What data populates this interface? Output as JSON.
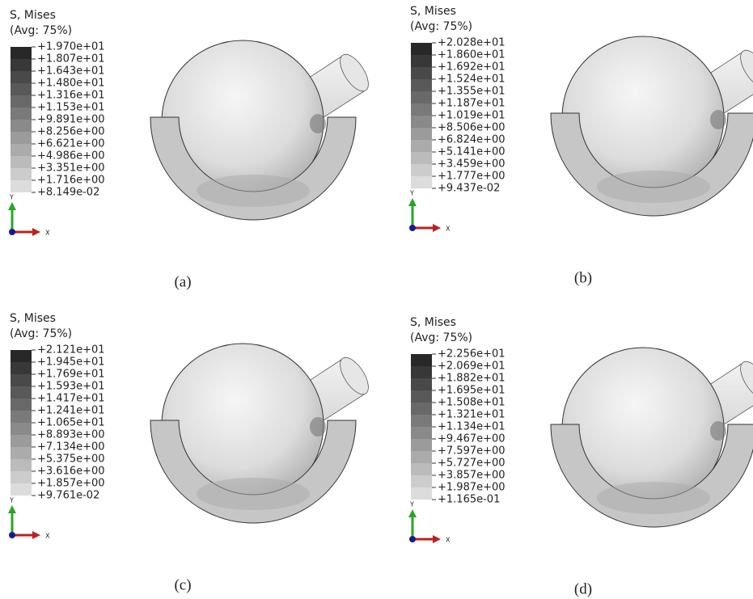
{
  "panels": [
    {
      "title": "S, Mises",
      "subtitle": "(Avg: 75%)",
      "legend": [
        "+1.970e+01",
        "+1.807e+01",
        "+1.643e+01",
        "+1.480e+01",
        "+1.316e+01",
        "+1.153e+01",
        "+9.891e+00",
        "+8.256e+00",
        "+6.621e+00",
        "+4.986e+00",
        "+3.351e+00",
        "+1.716e+00",
        "+8.149e-02"
      ],
      "axis_y": "Y",
      "axis_x": "X",
      "caption": "(a)"
    },
    {
      "title": "S, Mises",
      "subtitle": "(Avg: 75%)",
      "legend": [
        "+2.028e+01",
        "+1.860e+01",
        "+1.692e+01",
        "+1.524e+01",
        "+1.355e+01",
        "+1.187e+01",
        "+1.019e+01",
        "+8.506e+00",
        "+6.824e+00",
        "+5.141e+00",
        "+3.459e+00",
        "+1.777e+00",
        "+9.437e-02"
      ],
      "axis_y": "Y",
      "axis_x": "X",
      "caption": "(b)"
    },
    {
      "title": "S, Mises",
      "subtitle": "(Avg: 75%)",
      "legend": [
        "+2.121e+01",
        "+1.945e+01",
        "+1.769e+01",
        "+1.593e+01",
        "+1.417e+01",
        "+1.241e+01",
        "+1.065e+01",
        "+8.893e+00",
        "+7.134e+00",
        "+5.375e+00",
        "+3.616e+00",
        "+1.857e+00",
        "+9.761e-02"
      ],
      "axis_y": "Y",
      "axis_x": "X",
      "caption": "(c)"
    },
    {
      "title": "S, Mises",
      "subtitle": "(Avg: 75%)",
      "legend": [
        "+2.256e+01",
        "+2.069e+01",
        "+1.882e+01",
        "+1.695e+01",
        "+1.508e+01",
        "+1.321e+01",
        "+1.134e+01",
        "+9.467e+00",
        "+7.597e+00",
        "+5.727e+00",
        "+3.857e+00",
        "+1.987e+00",
        "+1.165e-01"
      ],
      "axis_y": "Y",
      "axis_x": "X",
      "caption": "(d)"
    }
  ]
}
